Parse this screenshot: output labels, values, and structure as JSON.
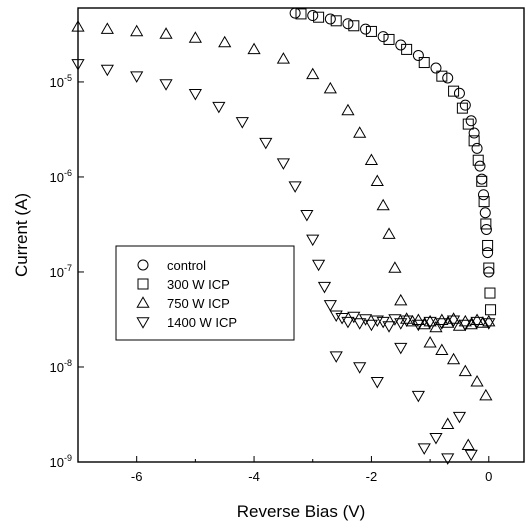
{
  "chart_data": {
    "type": "scatter",
    "xlabel": "Reverse Bias (V)",
    "ylabel": "Current (A)",
    "xlim": [
      -7,
      0.6
    ],
    "ylim": [
      1e-09,
      6e-05
    ],
    "y_scale": "log",
    "grid": false,
    "legend_position": "center-left",
    "x_ticks": [
      {
        "value": -6,
        "label": "-6"
      },
      {
        "value": -4,
        "label": "-4"
      },
      {
        "value": -2,
        "label": "-2"
      },
      {
        "value": 0,
        "label": "0"
      }
    ],
    "y_ticks": [
      {
        "value": 1e-09,
        "base": "10",
        "exp": "-9"
      },
      {
        "value": 1e-08,
        "base": "10",
        "exp": "-8"
      },
      {
        "value": 1e-07,
        "base": "10",
        "exp": "-7"
      },
      {
        "value": 1e-06,
        "base": "10",
        "exp": "-6"
      },
      {
        "value": 1e-05,
        "base": "10",
        "exp": "-5"
      }
    ],
    "series": [
      {
        "name": "control",
        "marker": "circle",
        "x": [
          -3.3,
          -3.0,
          -2.7,
          -2.4,
          -2.1,
          -1.8,
          -1.5,
          -1.2,
          -0.9,
          -0.7,
          -0.5,
          -0.4,
          -0.3,
          -0.25,
          -0.2,
          -0.15,
          -0.12,
          -0.09,
          -0.06,
          -0.04,
          -0.02,
          0.0
        ],
        "y": [
          5.3e-05,
          5e-05,
          4.6e-05,
          4.1e-05,
          3.6e-05,
          3e-05,
          2.45e-05,
          1.9e-05,
          1.4e-05,
          1.1e-05,
          7.6e-06,
          5.7e-06,
          3.9e-06,
          2.9e-06,
          2e-06,
          1.3e-06,
          9.5e-07,
          6.5e-07,
          4.2e-07,
          2.8e-07,
          1.6e-07,
          1e-07
        ]
      },
      {
        "name": "300 W ICP",
        "marker": "square",
        "x": [
          -3.2,
          -2.9,
          -2.6,
          -2.3,
          -2.0,
          -1.7,
          -1.4,
          -1.1,
          -0.8,
          -0.6,
          -0.45,
          -0.35,
          -0.25,
          -0.18,
          -0.12,
          -0.08,
          -0.05,
          -0.02,
          0.0,
          0.02,
          0.03
        ],
        "y": [
          5.2e-05,
          4.8e-05,
          4.4e-05,
          3.9e-05,
          3.4e-05,
          2.8e-05,
          2.2e-05,
          1.6e-05,
          1.15e-05,
          8e-06,
          5.3e-06,
          3.6e-06,
          2.4e-06,
          1.5e-06,
          9e-07,
          5.5e-07,
          3.2e-07,
          1.9e-07,
          1.1e-07,
          6e-08,
          4e-08
        ]
      },
      {
        "name": "750 W ICP",
        "marker": "triangle-up",
        "x": [
          -7.0,
          -6.5,
          -6.0,
          -5.5,
          -5.0,
          -4.5,
          -4.0,
          -3.5,
          -3.0,
          -2.7,
          -2.4,
          -2.2,
          -2.0,
          -1.9,
          -1.8,
          -1.7,
          -1.6,
          -1.5,
          -1.4,
          -1.3,
          -1.2,
          -1.1,
          -1.0,
          -0.9,
          -0.8,
          -0.7,
          -0.6,
          -0.5,
          -0.4,
          -0.3,
          -0.2,
          -0.1,
          0.0,
          -1.0,
          -0.8,
          -0.6,
          -0.4,
          -0.2,
          -0.05,
          -0.7,
          -0.35
        ],
        "y": [
          3.8e-05,
          3.6e-05,
          3.4e-05,
          3.2e-05,
          2.9e-05,
          2.6e-05,
          2.2e-05,
          1.75e-05,
          1.2e-05,
          8.5e-06,
          5e-06,
          2.9e-06,
          1.5e-06,
          9e-07,
          5e-07,
          2.5e-07,
          1.1e-07,
          5e-08,
          3.2e-08,
          3e-08,
          3.1e-08,
          2.8e-08,
          3e-08,
          2.6e-08,
          3.1e-08,
          2.9e-08,
          3.2e-08,
          2.7e-08,
          3e-08,
          2.8e-08,
          3.1e-08,
          2.9e-08,
          3e-08,
          1.8e-08,
          1.5e-08,
          1.2e-08,
          9e-09,
          7e-09,
          5e-09,
          2.5e-09,
          1.5e-09
        ]
      },
      {
        "name": "1400 W ICP",
        "marker": "triangle-down",
        "x": [
          -7.0,
          -6.5,
          -6.0,
          -5.5,
          -5.0,
          -4.6,
          -4.2,
          -3.8,
          -3.5,
          -3.3,
          -3.1,
          -3.0,
          -2.9,
          -2.8,
          -2.7,
          -2.6,
          -2.5,
          -2.4,
          -2.3,
          -2.2,
          -2.1,
          -2.0,
          -1.9,
          -1.8,
          -1.7,
          -1.6,
          -1.5,
          -1.4,
          -1.2,
          -1.0,
          -0.8,
          -0.6,
          -0.4,
          -0.2,
          0.0,
          -2.6,
          -2.2,
          -1.9,
          -1.5,
          -1.2,
          -0.9,
          -0.5,
          -0.3,
          -1.1,
          -0.7
        ],
        "y": [
          1.55e-05,
          1.35e-05,
          1.15e-05,
          9.5e-06,
          7.5e-06,
          5.5e-06,
          3.8e-06,
          2.3e-06,
          1.4e-06,
          8e-07,
          4e-07,
          2.2e-07,
          1.2e-07,
          7e-08,
          4.5e-08,
          3.5e-08,
          3.3e-08,
          3e-08,
          3.4e-08,
          2.9e-08,
          3.2e-08,
          2.8e-08,
          3.1e-08,
          3e-08,
          2.7e-08,
          3.2e-08,
          2.9e-08,
          3.1e-08,
          2.8e-08,
          3e-08,
          2.9e-08,
          3.1e-08,
          2.8e-08,
          3e-08,
          2.9e-08,
          1.3e-08,
          1e-08,
          7e-09,
          1.6e-08,
          5e-09,
          1.8e-09,
          3e-09,
          1.2e-09,
          1.4e-09,
          1.1e-09
        ]
      }
    ]
  }
}
